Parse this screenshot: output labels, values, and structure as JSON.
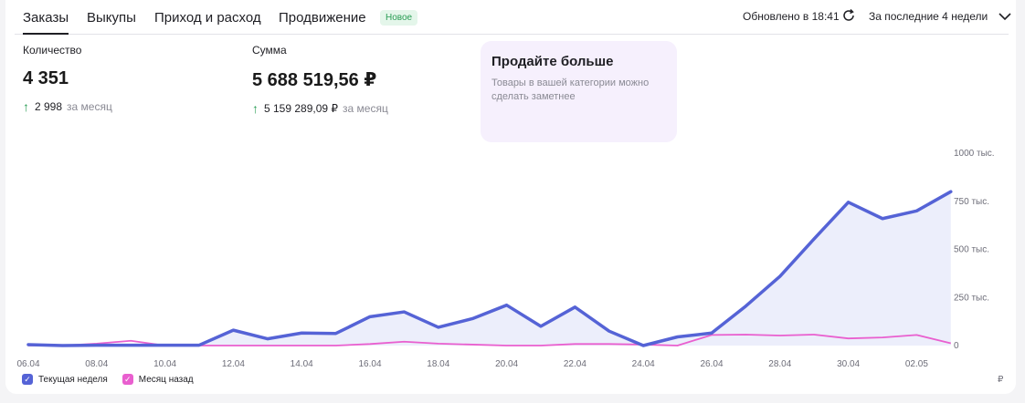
{
  "tabs": [
    {
      "label": "Заказы",
      "active": true
    },
    {
      "label": "Выкупы",
      "active": false
    },
    {
      "label": "Приход и расход",
      "active": false
    },
    {
      "label": "Продвижение",
      "active": false
    }
  ],
  "badge": "Новое",
  "header": {
    "updated": "Обновлено в 18:41",
    "period": "За последние 4 недели"
  },
  "stats": {
    "quantity": {
      "label": "Количество",
      "value": "4 351",
      "delta": "2 998",
      "delta_period": "за месяц"
    },
    "sum": {
      "label": "Сумма",
      "value": "5 688 519,56 ₽",
      "delta": "5 159 289,09 ₽",
      "delta_period": "за месяц"
    }
  },
  "promo": {
    "title": "Продайте больше",
    "text": "Товары в вашей категории можно сделать заметнее"
  },
  "colors": {
    "current": "#5563d6",
    "current_fill": "#eceefb",
    "previous": "#e95fcf",
    "positive": "#2a9d55"
  },
  "chart_data": {
    "type": "line",
    "x_tick_labels": [
      "06.04",
      "08.04",
      "10.04",
      "12.04",
      "14.04",
      "16.04",
      "18.04",
      "20.04",
      "22.04",
      "24.04",
      "26.04",
      "28.04",
      "30.04",
      "02.05"
    ],
    "x": [
      "06.04",
      "07.04",
      "08.04",
      "09.04",
      "10.04",
      "11.04",
      "12.04",
      "13.04",
      "14.04",
      "15.04",
      "16.04",
      "17.04",
      "18.04",
      "19.04",
      "20.04",
      "21.04",
      "22.04",
      "23.04",
      "24.04",
      "25.04",
      "26.04",
      "27.04",
      "28.04",
      "29.04",
      "30.04",
      "01.05",
      "02.05",
      "03.05"
    ],
    "y_tick_labels": [
      "1000 тыс.",
      "750 тыс.",
      "500 тыс.",
      "250 тыс.",
      "0"
    ],
    "ylim": [
      0,
      1000000
    ],
    "unit": "₽",
    "series": [
      {
        "name": "Текущая неделя",
        "values": [
          5000,
          0,
          2000,
          2000,
          2000,
          2000,
          80000,
          35000,
          65000,
          63000,
          150000,
          175000,
          95000,
          140000,
          210000,
          100000,
          200000,
          75000,
          0,
          45000,
          65000,
          205000,
          360000,
          555000,
          745000,
          660000,
          700000,
          800000
        ]
      },
      {
        "name": "Месяц назад",
        "values": [
          0,
          0,
          10000,
          25000,
          0,
          0,
          0,
          0,
          0,
          0,
          8000,
          20000,
          10000,
          5000,
          0,
          0,
          8000,
          8000,
          5000,
          0,
          55000,
          57000,
          52000,
          57000,
          37000,
          42000,
          55000,
          12000
        ]
      }
    ],
    "legend": "bottom-left",
    "grid": false
  }
}
